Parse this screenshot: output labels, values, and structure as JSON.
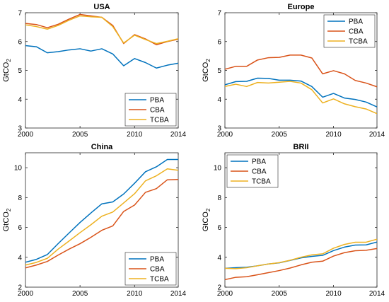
{
  "figure": {
    "ylabel": "GtCO",
    "ylabel_sub": "2"
  },
  "colors": {
    "PBA": "#0072BD",
    "CBA": "#D95319",
    "TCBA": "#EDB120"
  },
  "chart_data": [
    {
      "type": "line",
      "title": "USA",
      "xlabel": "",
      "ylabel": "GtCO2",
      "x": [
        2000,
        2001,
        2002,
        2003,
        2004,
        2005,
        2006,
        2007,
        2008,
        2009,
        2010,
        2011,
        2012,
        2013,
        2014
      ],
      "xlim": [
        2000,
        2014
      ],
      "xticks": [
        2000,
        2005,
        2010,
        2014
      ],
      "ylim": [
        3,
        7
      ],
      "yticks": [
        3,
        4,
        5,
        6,
        7
      ],
      "legend": "bottom-right",
      "grid": false,
      "series": [
        {
          "name": "PBA",
          "values": [
            5.86,
            5.82,
            5.61,
            5.65,
            5.71,
            5.75,
            5.67,
            5.75,
            5.57,
            5.16,
            5.41,
            5.27,
            5.08,
            5.18,
            5.25
          ]
        },
        {
          "name": "CBA",
          "values": [
            6.63,
            6.59,
            6.48,
            6.6,
            6.78,
            6.94,
            6.89,
            6.84,
            6.56,
            5.93,
            6.24,
            6.09,
            5.89,
            6.0,
            6.08
          ]
        },
        {
          "name": "TCBA",
          "values": [
            6.58,
            6.52,
            6.43,
            6.56,
            6.74,
            6.89,
            6.86,
            6.84,
            6.52,
            5.95,
            6.22,
            6.07,
            5.93,
            6.01,
            6.1
          ]
        }
      ]
    },
    {
      "type": "line",
      "title": "Europe",
      "xlabel": "",
      "ylabel": "GtCO2",
      "x": [
        2000,
        2001,
        2002,
        2003,
        2004,
        2005,
        2006,
        2007,
        2008,
        2009,
        2010,
        2011,
        2012,
        2013,
        2014
      ],
      "xlim": [
        2000,
        2014
      ],
      "xticks": [
        2000,
        2005,
        2010,
        2014
      ],
      "ylim": [
        3,
        7
      ],
      "yticks": [
        3,
        4,
        5,
        6,
        7
      ],
      "legend": "top-right",
      "grid": false,
      "series": [
        {
          "name": "PBA",
          "values": [
            4.5,
            4.61,
            4.62,
            4.73,
            4.72,
            4.66,
            4.66,
            4.63,
            4.44,
            4.07,
            4.2,
            4.04,
            3.99,
            3.9,
            3.73
          ]
        },
        {
          "name": "CBA",
          "values": [
            5.04,
            5.14,
            5.14,
            5.36,
            5.44,
            5.45,
            5.53,
            5.53,
            5.43,
            4.88,
            4.99,
            4.88,
            4.65,
            4.56,
            4.43
          ]
        },
        {
          "name": "TCBA",
          "values": [
            4.44,
            4.52,
            4.44,
            4.58,
            4.56,
            4.59,
            4.62,
            4.56,
            4.33,
            3.87,
            4.01,
            3.84,
            3.74,
            3.66,
            3.5
          ]
        }
      ]
    },
    {
      "type": "line",
      "title": "China",
      "xlabel": "",
      "ylabel": "GtCO2",
      "x": [
        2000,
        2001,
        2002,
        2003,
        2004,
        2005,
        2006,
        2007,
        2008,
        2009,
        2010,
        2011,
        2012,
        2013,
        2014
      ],
      "xlim": [
        2000,
        2014
      ],
      "xticks": [
        2000,
        2005,
        2010,
        2014
      ],
      "ylim": [
        2,
        11
      ],
      "yticks": [
        2,
        4,
        6,
        8,
        10
      ],
      "legend": "bottom-right",
      "grid": false,
      "series": [
        {
          "name": "PBA",
          "values": [
            3.67,
            3.86,
            4.18,
            4.92,
            5.63,
            6.33,
            6.97,
            7.58,
            7.71,
            8.24,
            8.96,
            9.73,
            10.06,
            10.55,
            10.55
          ]
        },
        {
          "name": "CBA",
          "values": [
            3.29,
            3.48,
            3.72,
            4.15,
            4.55,
            4.91,
            5.34,
            5.81,
            6.1,
            7.07,
            7.5,
            8.35,
            8.6,
            9.19,
            9.21
          ]
        },
        {
          "name": "TCBA",
          "values": [
            3.48,
            3.66,
            3.93,
            4.55,
            5.09,
            5.65,
            6.18,
            6.75,
            7.03,
            7.64,
            8.26,
            9.12,
            9.46,
            9.92,
            9.83
          ]
        }
      ]
    },
    {
      "type": "line",
      "title": "BRII",
      "xlabel": "",
      "ylabel": "GtCO2",
      "x": [
        2000,
        2001,
        2002,
        2003,
        2004,
        2005,
        2006,
        2007,
        2008,
        2009,
        2010,
        2011,
        2012,
        2013,
        2014
      ],
      "xlim": [
        2000,
        2014
      ],
      "xticks": [
        2000,
        2005,
        2010,
        2014
      ],
      "ylim": [
        2,
        11
      ],
      "yticks": [
        2,
        4,
        6,
        8,
        10
      ],
      "legend": "top-left",
      "grid": false,
      "series": [
        {
          "name": "PBA",
          "values": [
            3.26,
            3.3,
            3.33,
            3.43,
            3.55,
            3.63,
            3.79,
            3.96,
            4.06,
            4.13,
            4.45,
            4.68,
            4.82,
            4.83,
            5.02
          ]
        },
        {
          "name": "CBA",
          "values": [
            2.5,
            2.66,
            2.7,
            2.83,
            2.97,
            3.11,
            3.28,
            3.49,
            3.67,
            3.74,
            4.08,
            4.31,
            4.44,
            4.47,
            4.59
          ]
        },
        {
          "name": "TCBA",
          "values": [
            3.26,
            3.24,
            3.3,
            3.43,
            3.55,
            3.64,
            3.8,
            4.0,
            4.16,
            4.23,
            4.61,
            4.86,
            5.01,
            5.01,
            5.21
          ]
        }
      ]
    }
  ]
}
